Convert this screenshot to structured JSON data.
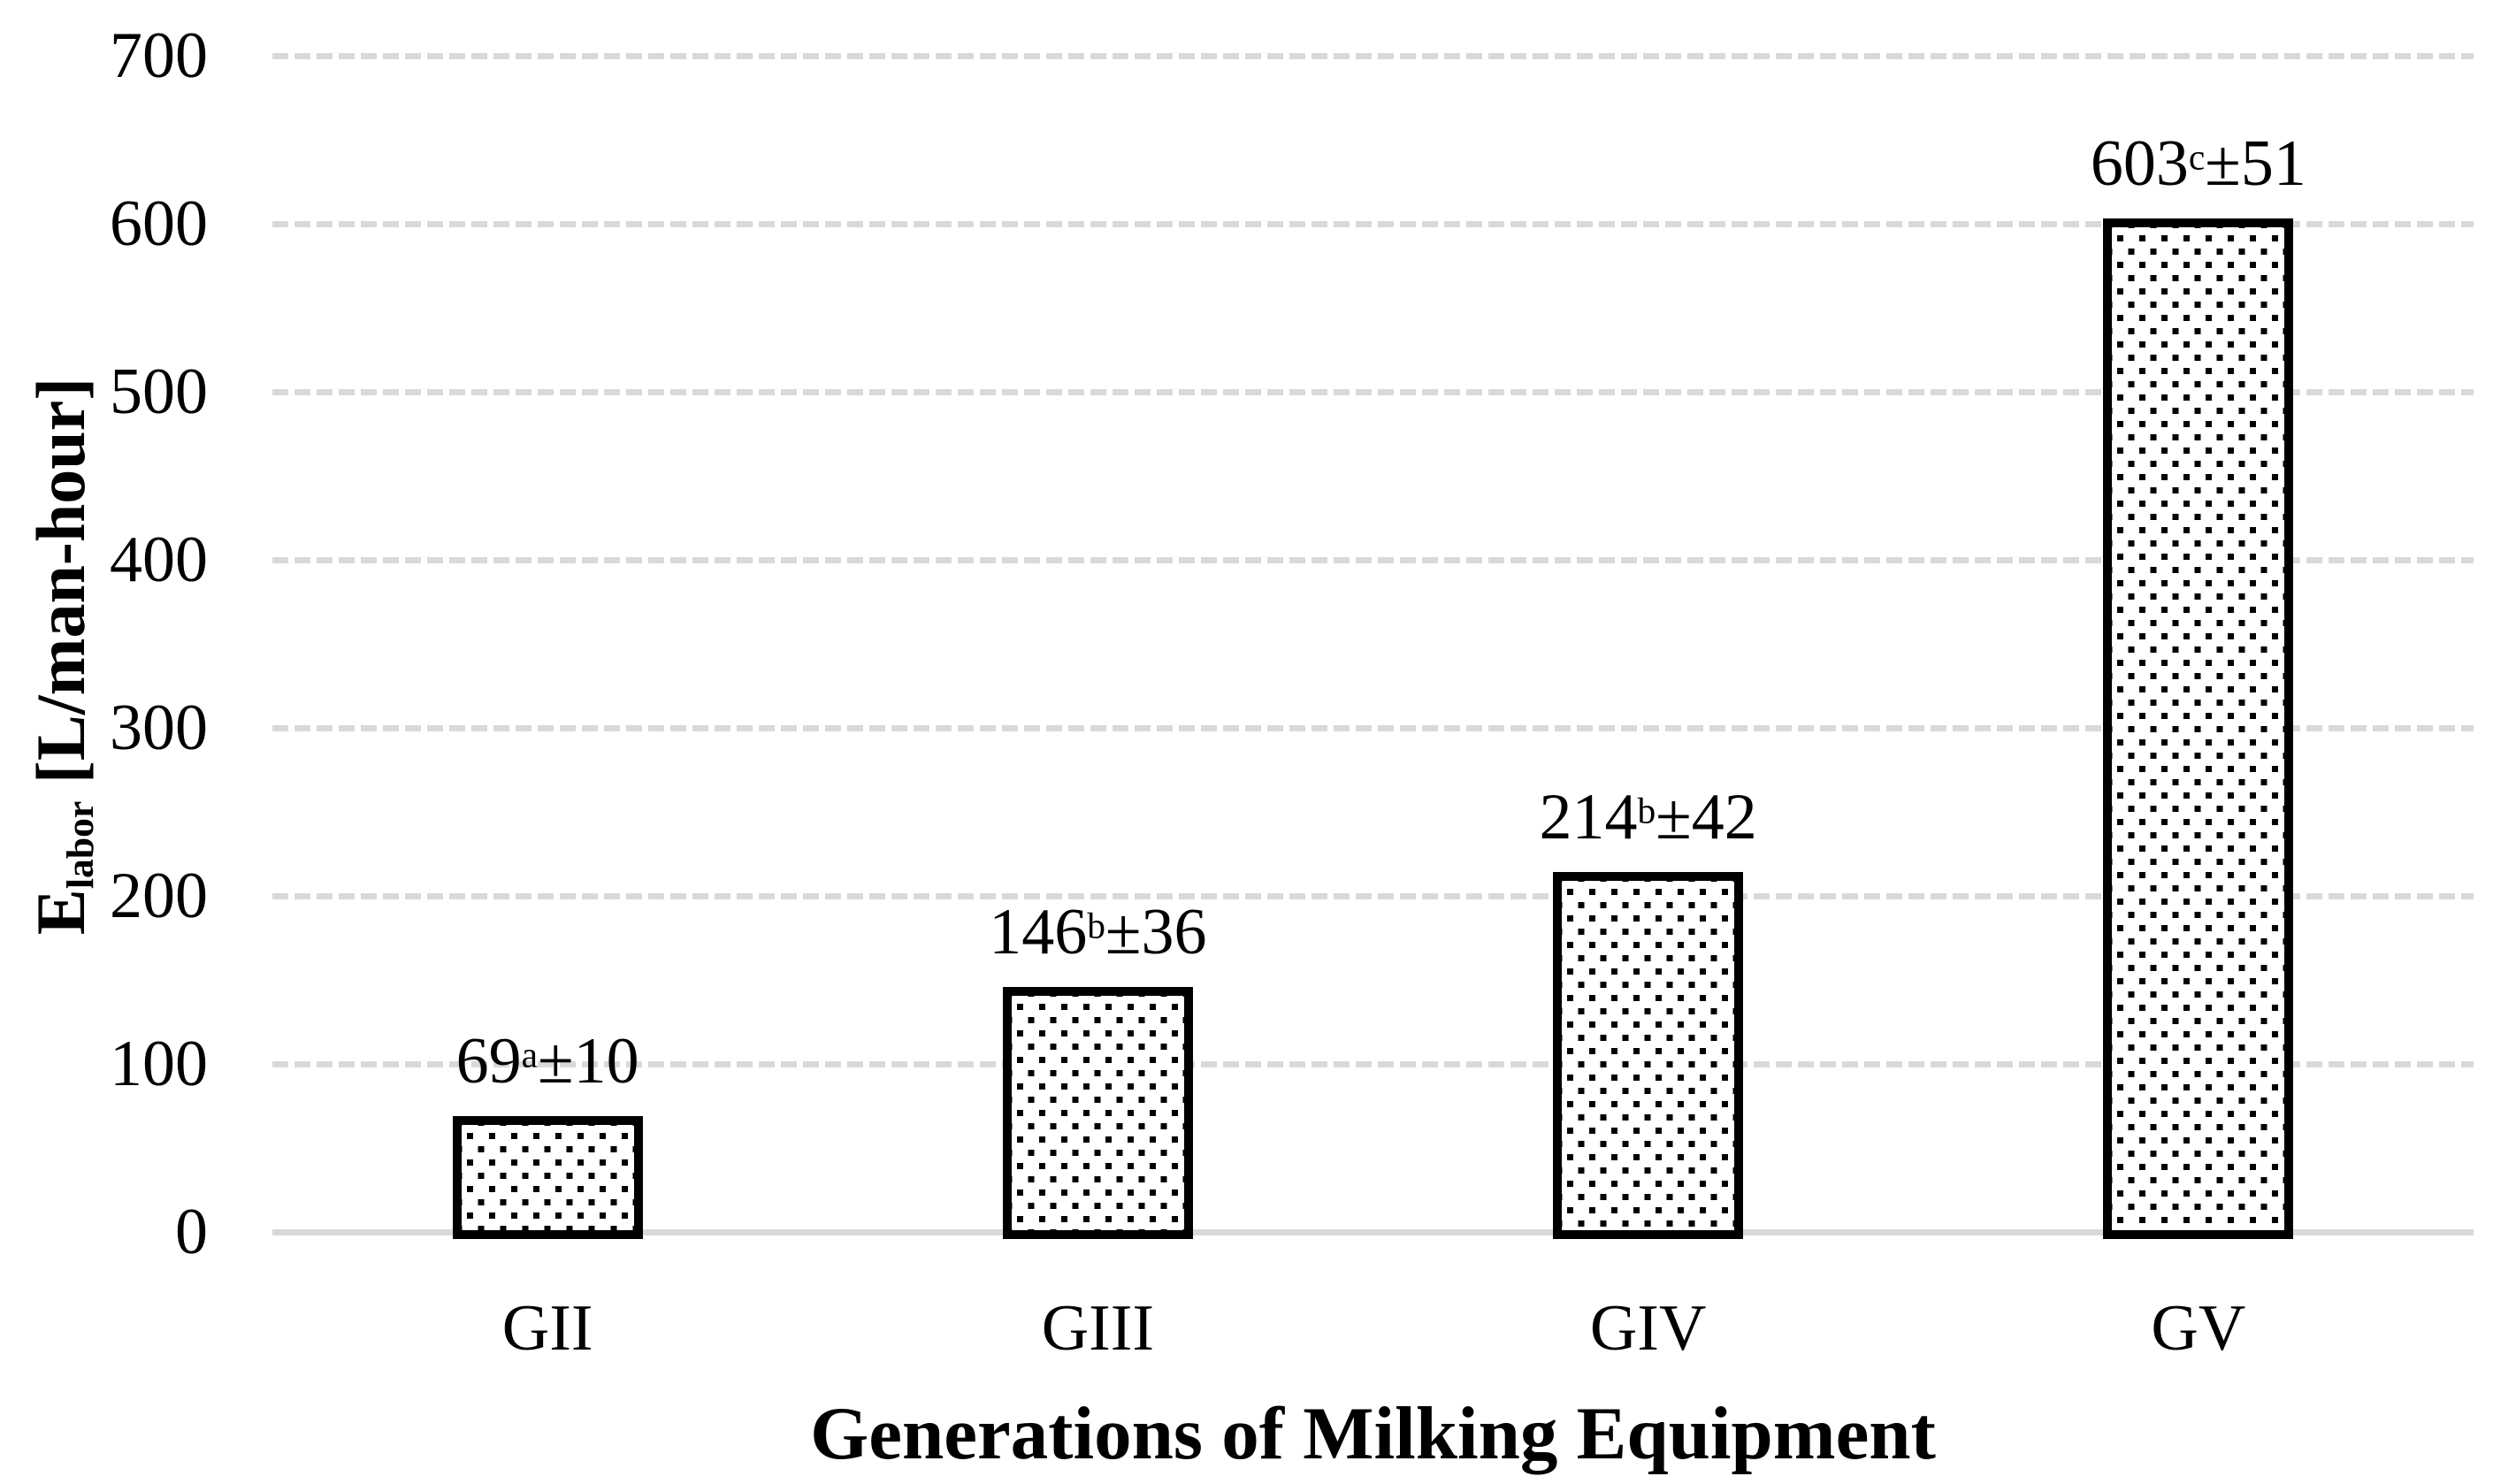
{
  "chart_data": {
    "type": "bar",
    "title": "",
    "xlabel": "Generations of Milking Equipment",
    "ylabel": "E_labor [L/man-hour]",
    "ylabel_parts": {
      "prefix": "E",
      "subscript": "labor",
      "suffix": " [L/man-hour]"
    },
    "categories": [
      "GII",
      "GIII",
      "GIV",
      "GV"
    ],
    "values": [
      69,
      146,
      214,
      603
    ],
    "error_values": [
      10,
      36,
      42,
      51
    ],
    "significance_letters": [
      "a",
      "b",
      "b",
      "c"
    ],
    "bar_labels": [
      "69a±10",
      "146b±36",
      "214b±42",
      "603c±51"
    ],
    "plus_minus": "±",
    "ylim": [
      0,
      700
    ],
    "ytick_step": 100,
    "ytick_labels": [
      "700",
      "600",
      "500",
      "400",
      "300",
      "200",
      "100",
      "0"
    ],
    "grid": "horizontal dashed gridlines, solid light axis line at 0",
    "legend_position": "none",
    "bar_style": "white fill with offset lattice of small black squares, thick black outline",
    "colors": {
      "background": "#FFFFFF",
      "text": "#000000",
      "bar_border": "#000000",
      "bar_dot": "#000000",
      "bar_background": "#FFFFFF",
      "gridline": "#D9D9D9",
      "axis_line": "#D9D9D9"
    }
  }
}
